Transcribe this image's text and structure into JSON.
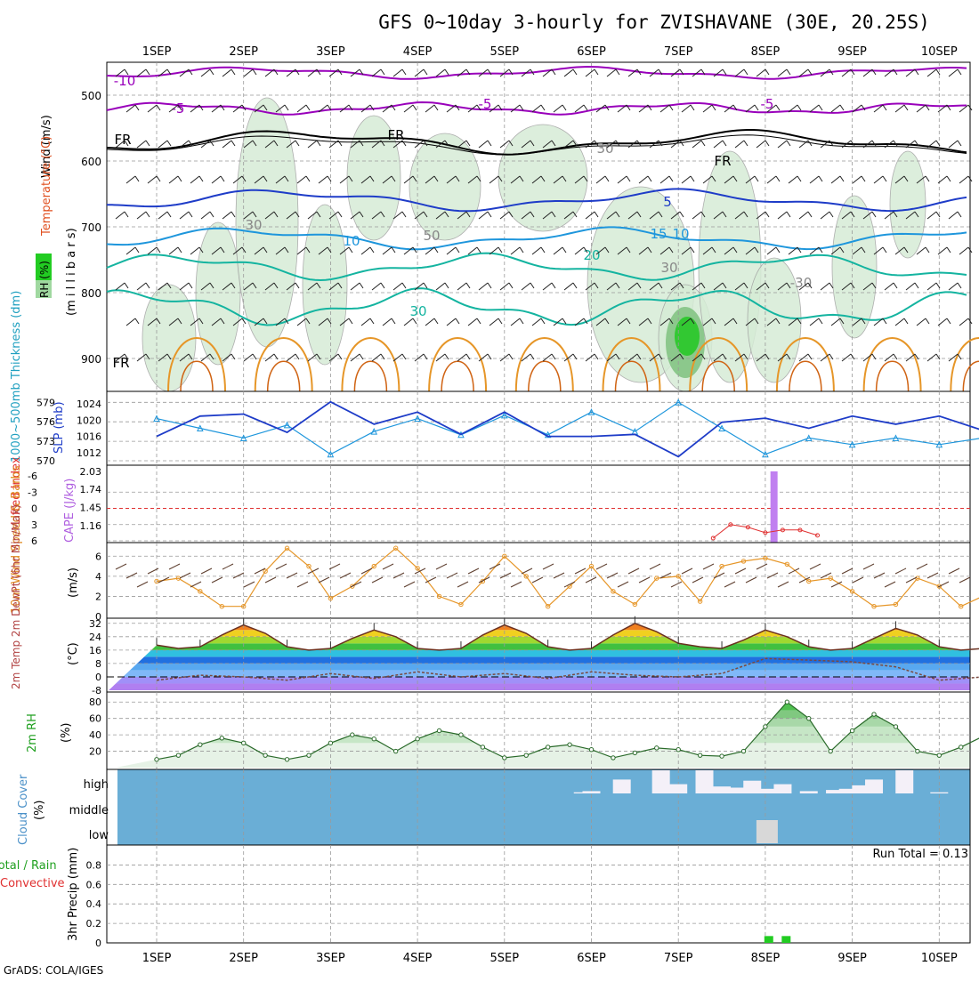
{
  "title": "GFS 0~10day 3-hourly for ZVISHAVANE (30E, 20.25S)",
  "footer": "GrADS: COLA/IGES",
  "dates": [
    "1SEP",
    "2SEP",
    "3SEP",
    "4SEP",
    "5SEP",
    "6SEP",
    "7SEP",
    "8SEP",
    "9SEP",
    "10SEP"
  ],
  "colors": {
    "purple": "#9900bb",
    "black": "#000000",
    "blue": "#1e3cc8",
    "lightblue": "#1e96dc",
    "teal": "#14b4a0",
    "orange": "#e69628",
    "rh_green": "#32c832",
    "cloud_bg": "#6aaed6",
    "precip_green": "#22cc22"
  },
  "panels": {
    "upper": {
      "ylabel_wind": "Wind (m/s)",
      "ylabel_temp": "Temperature (°C)",
      "ylabel_mb": "(m i l l i b a r s)",
      "ylabel_rh": "RH (%)",
      "yticks": [
        "500",
        "600",
        "700",
        "800",
        "900"
      ],
      "contour_labels": [
        "-10",
        "-5",
        "-5",
        "-5",
        "FR",
        "FR",
        "FR",
        "FR",
        "5",
        "10",
        "10",
        "15",
        "20",
        "30",
        "30",
        "30",
        "50",
        "30",
        "-30"
      ]
    },
    "thickness": {
      "ylabel_left": "1000~500mb Thickness (dm)",
      "ylabel_right": "SLP (mb)",
      "left_ticks": [
        "579",
        "576",
        "573",
        "570"
      ],
      "right_ticks": [
        "1024",
        "1020",
        "1016",
        "1012"
      ]
    },
    "cape": {
      "ylabel_left": "Lifted Index",
      "ylabel_right": "CAPE (J/kg)",
      "left_ticks": [
        "-6",
        "-3",
        "0",
        "3",
        "6"
      ],
      "right_ticks": [
        "2.03",
        "1.74",
        "1.45",
        "1.16"
      ]
    },
    "wind10m": {
      "ylabel": "10m Wind Speed & Barbs",
      "ylabel_unit": "(m/s)",
      "ticks": [
        "6",
        "4",
        "2",
        "0"
      ]
    },
    "temp2m": {
      "ylabel": "2m Temp 2m DewPt (6hr Min/Max)",
      "ylabel_unit": "(°C)",
      "ticks": [
        "32",
        "24",
        "16",
        "8",
        "0",
        "-8"
      ]
    },
    "rh2m": {
      "ylabel": "2m RH",
      "ylabel_unit": "(%)",
      "ticks": [
        "80",
        "60",
        "40",
        "20"
      ]
    },
    "cloud": {
      "ylabel": "Cloud Cover",
      "ylabel_unit": "(%)",
      "levels": [
        "high",
        "middle",
        "low"
      ]
    },
    "precip": {
      "ylabel_a": "Total / Rain",
      "ylabel_b": "Convective",
      "ylabel_c": "3hr Precip (mm)",
      "ticks": [
        "0.8",
        "0.6",
        "0.4",
        "0.2",
        "0"
      ],
      "run_total": "Run Total = 0.13"
    }
  },
  "chart_data": [
    {
      "type": "line",
      "title": "1000~500mb Thickness (dm)",
      "xunit": "days from 1SEP 00Z",
      "ylim": [
        570,
        580
      ],
      "x": [
        0,
        0.5,
        1,
        1.5,
        2,
        2.5,
        3,
        3.5,
        4,
        4.5,
        5,
        5.5,
        6,
        6.5,
        7,
        7.5,
        8,
        8.5,
        9,
        9.5,
        10,
        10.2
      ],
      "values": [
        576.5,
        575,
        573.5,
        575.5,
        571,
        574.5,
        576.5,
        574,
        577,
        574,
        577.5,
        574.5,
        579,
        575,
        571,
        573.5,
        572.5,
        573.5,
        572.5,
        573.5,
        573,
        571.5
      ]
    },
    {
      "type": "line",
      "title": "SLP (mb)",
      "ylim": [
        1010,
        1026
      ],
      "x": [
        0,
        0.5,
        1,
        1.5,
        2,
        2.5,
        3,
        3.5,
        4,
        4.5,
        5,
        5.5,
        6,
        6.5,
        7,
        7.5,
        8,
        8.5,
        9,
        9.5,
        10,
        10.2
      ],
      "values": [
        1016,
        1021,
        1021.5,
        1017,
        1024.5,
        1019,
        1022,
        1016.5,
        1022,
        1016,
        1016,
        1016.5,
        1011,
        1019.5,
        1020.5,
        1018,
        1021,
        1019,
        1021,
        1017.5,
        1020,
        1021
      ]
    },
    {
      "type": "bar",
      "title": "CAPE (J/kg)",
      "x": [
        7.1
      ],
      "values": [
        2.03
      ],
      "ylim": [
        1.0,
        2.1
      ]
    },
    {
      "type": "line",
      "title": "Lifted Index",
      "ylim": [
        -6,
        6
      ],
      "x": [
        6.4,
        6.6,
        6.8,
        7.0,
        7.2,
        7.4,
        7.6
      ],
      "values": [
        5.5,
        3,
        3.5,
        4.5,
        4,
        4,
        5
      ]
    },
    {
      "type": "line",
      "title": "10m Wind Speed (m/s)",
      "ylim": [
        0,
        7
      ],
      "x": [
        0,
        0.25,
        0.5,
        0.75,
        1,
        1.25,
        1.5,
        1.75,
        2,
        2.25,
        2.5,
        2.75,
        3,
        3.25,
        3.5,
        3.75,
        4,
        4.25,
        4.5,
        4.75,
        5,
        5.25,
        5.5,
        5.75,
        6,
        6.25,
        6.5,
        6.75,
        7,
        7.25,
        7.5,
        7.75,
        8,
        8.25,
        8.5,
        8.75,
        9,
        9.25,
        9.5,
        9.75,
        10,
        10.2
      ],
      "values": [
        3.5,
        3.8,
        2.5,
        1,
        1,
        4.5,
        6.8,
        5,
        1.8,
        3,
        5,
        6.8,
        4.8,
        2,
        1.2,
        3.5,
        6,
        4,
        1,
        3,
        5,
        2.5,
        1.2,
        3.8,
        4,
        1.5,
        5,
        5.5,
        5.8,
        5.2,
        3.5,
        3.8,
        2.5,
        1,
        1.2,
        3.8,
        3,
        1,
        2,
        5.5,
        5.8,
        3.8
      ]
    },
    {
      "type": "area",
      "title": "2m Temp (°C)",
      "ylim": [
        -8,
        34
      ],
      "x": [
        0,
        0.25,
        0.5,
        0.75,
        1,
        1.25,
        1.5,
        1.75,
        2,
        2.25,
        2.5,
        2.75,
        3,
        3.25,
        3.5,
        3.75,
        4,
        4.25,
        4.5,
        4.75,
        5,
        5.25,
        5.5,
        5.75,
        6,
        6.25,
        6.5,
        6.75,
        7,
        7.25,
        7.5,
        7.75,
        8,
        8.25,
        8.5,
        8.75,
        9,
        9.25,
        9.5,
        9.75,
        10,
        10.2
      ],
      "values": [
        19,
        17,
        18,
        25,
        31,
        26,
        18,
        16,
        17,
        23,
        28,
        24,
        17,
        16,
        17,
        25,
        31,
        26,
        18,
        16,
        17,
        25,
        32,
        27,
        20,
        18,
        17,
        22,
        28,
        24,
        18,
        16,
        17,
        23,
        29,
        25,
        18,
        16,
        17,
        25,
        31,
        20
      ]
    },
    {
      "type": "line",
      "title": "2m DewPt (°C)",
      "ylim": [
        -8,
        34
      ],
      "x": [
        0,
        0.5,
        1,
        1.5,
        2,
        2.5,
        3,
        3.5,
        4,
        4.5,
        5,
        5.5,
        6,
        6.5,
        7,
        7.5,
        8,
        8.5,
        9,
        9.5,
        10,
        10.2
      ],
      "values": [
        -2,
        1,
        0,
        -2,
        2,
        -1,
        3,
        0,
        2,
        -1,
        3,
        1,
        0,
        2,
        11,
        10,
        9,
        6,
        -2,
        0,
        -1,
        3
      ]
    },
    {
      "type": "area",
      "title": "2m RH (%)",
      "ylim": [
        0,
        90
      ],
      "x": [
        0,
        0.25,
        0.5,
        0.75,
        1,
        1.25,
        1.5,
        1.75,
        2,
        2.25,
        2.5,
        2.75,
        3,
        3.25,
        3.5,
        3.75,
        4,
        4.25,
        4.5,
        4.75,
        5,
        5.25,
        5.5,
        5.75,
        6,
        6.25,
        6.5,
        6.75,
        7,
        7.25,
        7.5,
        7.75,
        8,
        8.25,
        8.5,
        8.75,
        9,
        9.25,
        9.5,
        9.75,
        10,
        10.2
      ],
      "values": [
        10,
        15,
        28,
        36,
        30,
        15,
        10,
        15,
        30,
        40,
        35,
        20,
        35,
        45,
        40,
        25,
        12,
        15,
        25,
        28,
        22,
        12,
        18,
        24,
        22,
        15,
        14,
        20,
        50,
        80,
        60,
        20,
        45,
        65,
        50,
        20,
        15,
        25,
        38,
        30,
        12,
        40
      ]
    },
    {
      "type": "bar",
      "title": "Cloud Cover high (%)",
      "x": [
        4.9,
        5.0,
        5.35,
        5.8,
        6.0,
        6.3,
        6.5,
        6.7,
        6.85,
        7.0,
        7.2,
        7.5,
        7.8,
        7.95,
        8.1,
        8.25,
        8.6,
        9.0
      ],
      "values": [
        5,
        10,
        60,
        100,
        40,
        100,
        30,
        25,
        55,
        20,
        40,
        10,
        15,
        20,
        35,
        60,
        100,
        5
      ]
    },
    {
      "type": "bar",
      "title": "Cloud Cover low (%)",
      "x": [
        7.0
      ],
      "values": [
        100
      ]
    },
    {
      "type": "bar",
      "title": "3hr Precip Total / Rain (mm)",
      "ylim": [
        0,
        0.95
      ],
      "x": [
        7.05,
        7.25
      ],
      "values": [
        0.07,
        0.07
      ]
    }
  ]
}
